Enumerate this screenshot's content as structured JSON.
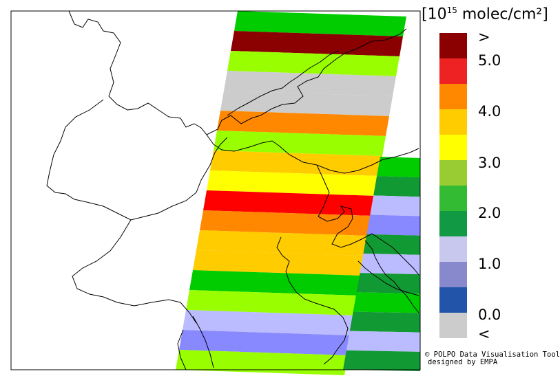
{
  "legend": {
    "unit_prefix": "[10",
    "unit_exp": "15",
    "unit_suffix": " molec/cm²]",
    "bins": [
      {
        "label": "",
        "color": "#8b0000"
      },
      {
        "label": "",
        "color": "#ee2222"
      },
      {
        "label": "",
        "color": "#ff8800"
      },
      {
        "label": "",
        "color": "#ffcc00"
      },
      {
        "label": "",
        "color": "#ffff00"
      },
      {
        "label": "",
        "color": "#99cc33"
      },
      {
        "label": "",
        "color": "#33bb33"
      },
      {
        "label": "",
        "color": "#119944"
      },
      {
        "label": "",
        "color": "#c8c8ee"
      },
      {
        "label": "",
        "color": "#8888cc"
      },
      {
        "label": "",
        "color": "#2255aa"
      },
      {
        "label": "",
        "color": "#cccccc"
      }
    ],
    "tick_labels": [
      ">",
      "5.0",
      "4.0",
      "3.0",
      "2.0",
      "1.0",
      "0.0",
      "<"
    ]
  },
  "swath_colors": {
    "darkred": "#8b0000",
    "red": "#ff0000",
    "orange": "#ff8800",
    "amber": "#ffcc00",
    "yellow": "#ffff00",
    "lime": "#99ff00",
    "green": "#00cc00",
    "darkgreen": "#119933",
    "lavender": "#bbbbff",
    "periwinkle": "#8888ff",
    "grey": "#cccccc"
  },
  "credit": {
    "line1": "© POLPO Data Visualisation Tool",
    "line2": "designed by EMPA"
  }
}
